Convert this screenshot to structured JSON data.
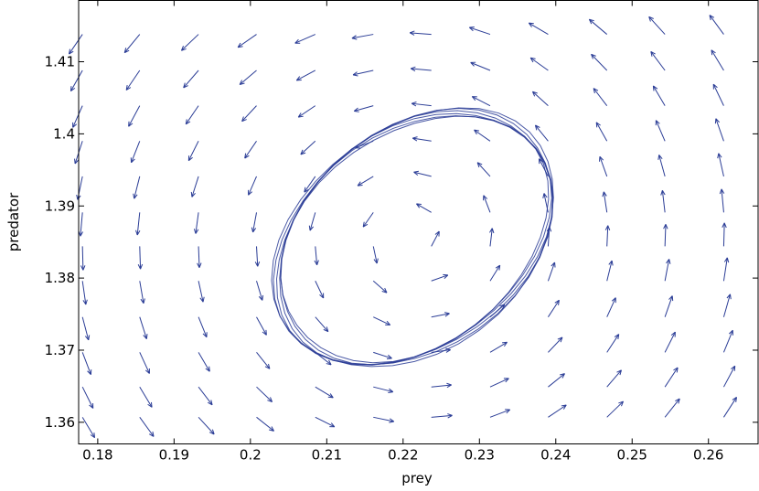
{
  "chart_data": {
    "type": "quiver",
    "xlabel": "prey",
    "ylabel": "predator",
    "xlim": [
      0.1775,
      0.2665
    ],
    "ylim": [
      1.357,
      1.4185
    ],
    "xticks": [
      0.18,
      0.19,
      0.2,
      0.21,
      0.22,
      0.23,
      0.24,
      0.25,
      0.26
    ],
    "yticks": [
      1.36,
      1.37,
      1.38,
      1.39,
      1.4,
      1.41
    ],
    "xtick_labels": [
      "0.18",
      "0.19",
      "0.2",
      "0.21",
      "0.22",
      "0.23",
      "0.24",
      "0.25",
      "0.26"
    ],
    "ytick_labels": [
      "1.36",
      "1.37",
      "1.38",
      "1.39",
      "1.4",
      "1.41"
    ],
    "grid": false,
    "color": "#2b3d96",
    "vector_field": {
      "x": [
        0.178,
        0.1855,
        0.1932,
        0.2008,
        0.2085,
        0.2161,
        0.2237,
        0.2314,
        0.239,
        0.2467,
        0.2543,
        0.262
      ],
      "y": [
        1.3607,
        1.3649,
        1.3697,
        1.3746,
        1.3796,
        1.3844,
        1.3891,
        1.3941,
        1.399,
        1.4039,
        1.4088,
        1.4138
      ],
      "note": "arrow direction follows the Lotka-Volterra field around equilibrium (0.2215, 1.3855)"
    },
    "orbit": {
      "center": [
        0.2215,
        1.3855
      ],
      "rx": [
        0.0195,
        0.0205
      ],
      "ry": [
        0.0162,
        0.017
      ],
      "loops": 6
    }
  }
}
